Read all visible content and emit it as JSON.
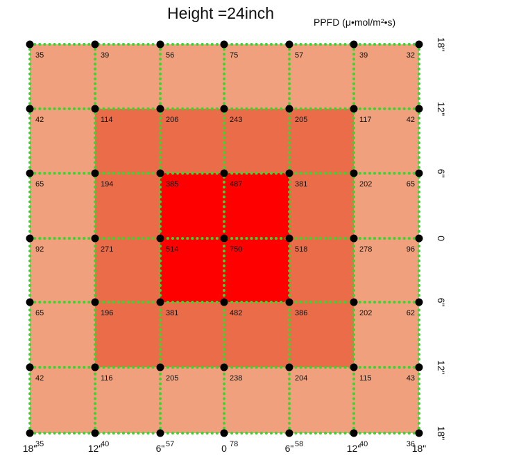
{
  "chart_data": {
    "type": "heatmap",
    "title": "Height =24inch",
    "unit_label": "PPFD (μ•mol/m²•s)",
    "x_tick_labels": [
      "18\"",
      "12\"",
      "6\"",
      "0",
      "6\"",
      "12\"",
      "18\""
    ],
    "y_tick_labels": [
      "18\"",
      "12\"",
      "6\"",
      "0",
      "6\"",
      "12\"",
      "18\""
    ],
    "values": [
      [
        35,
        39,
        56,
        75,
        57,
        39,
        32
      ],
      [
        42,
        114,
        206,
        243,
        205,
        117,
        42
      ],
      [
        65,
        194,
        385,
        487,
        381,
        202,
        65
      ],
      [
        92,
        271,
        514,
        750,
        518,
        278,
        96
      ],
      [
        65,
        196,
        381,
        482,
        386,
        202,
        62
      ],
      [
        42,
        116,
        205,
        238,
        204,
        115,
        43
      ],
      [
        35,
        40,
        57,
        78,
        58,
        40,
        36
      ]
    ],
    "zone_colors": {
      "outer": "#f0a07c",
      "middle": "#eb6c48",
      "center": "#ff0000"
    },
    "grid_line_color": "#39d62f",
    "point_color": "#000000"
  }
}
